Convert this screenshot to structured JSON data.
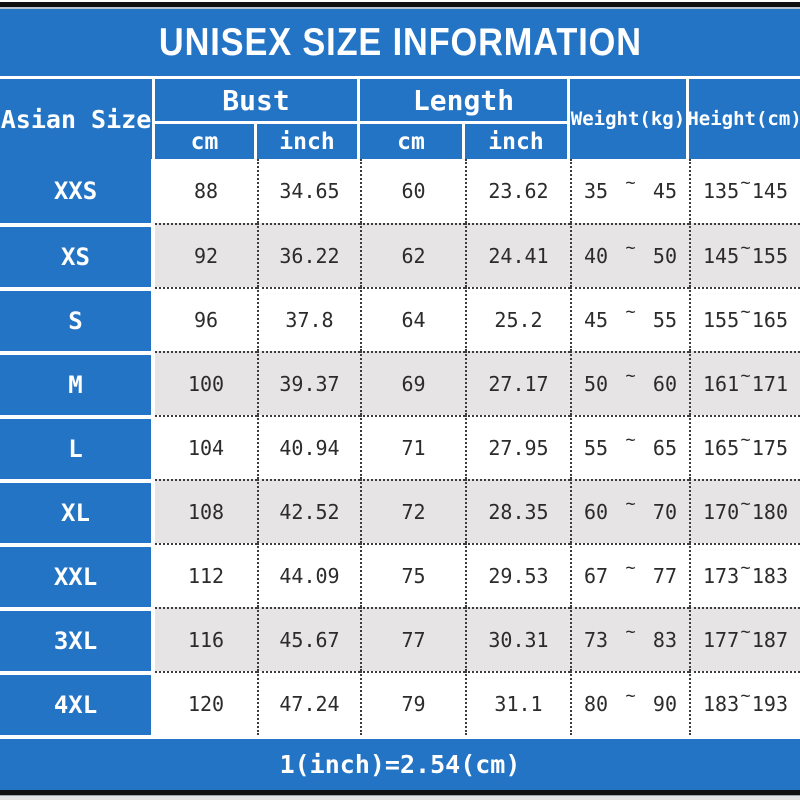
{
  "colors": {
    "accent_blue": "#2474C6",
    "row_alt_gray": "#E7E4E5",
    "cell_text": "#2B2B2B",
    "header_text": "#FFFFFF"
  },
  "chart_data": {
    "type": "table",
    "title": "UNISEX SIZE INFORMATION",
    "footnote": "1(inch)=2.54(cm)",
    "header": {
      "size_col": "Asian Size",
      "bust_group": "Bust",
      "length_group": "Length",
      "weight_col": "Weight(kg)",
      "height_col": "Height(cm)",
      "unit_cm": "cm",
      "unit_inch": "inch",
      "range_separator": "~"
    },
    "rows": [
      {
        "size": "XXS",
        "bust_cm": "88",
        "bust_inch": "34.65",
        "length_cm": "60",
        "length_inch": "23.62",
        "weight_min": "35",
        "weight_max": "45",
        "height_min": "135",
        "height_max": "145"
      },
      {
        "size": "XS",
        "bust_cm": "92",
        "bust_inch": "36.22",
        "length_cm": "62",
        "length_inch": "24.41",
        "weight_min": "40",
        "weight_max": "50",
        "height_min": "145",
        "height_max": "155"
      },
      {
        "size": "S",
        "bust_cm": "96",
        "bust_inch": "37.8",
        "length_cm": "64",
        "length_inch": "25.2",
        "weight_min": "45",
        "weight_max": "55",
        "height_min": "155",
        "height_max": "165"
      },
      {
        "size": "M",
        "bust_cm": "100",
        "bust_inch": "39.37",
        "length_cm": "69",
        "length_inch": "27.17",
        "weight_min": "50",
        "weight_max": "60",
        "height_min": "161",
        "height_max": "171"
      },
      {
        "size": "L",
        "bust_cm": "104",
        "bust_inch": "40.94",
        "length_cm": "71",
        "length_inch": "27.95",
        "weight_min": "55",
        "weight_max": "65",
        "height_min": "165",
        "height_max": "175"
      },
      {
        "size": "XL",
        "bust_cm": "108",
        "bust_inch": "42.52",
        "length_cm": "72",
        "length_inch": "28.35",
        "weight_min": "60",
        "weight_max": "70",
        "height_min": "170",
        "height_max": "180"
      },
      {
        "size": "XXL",
        "bust_cm": "112",
        "bust_inch": "44.09",
        "length_cm": "75",
        "length_inch": "29.53",
        "weight_min": "67",
        "weight_max": "77",
        "height_min": "173",
        "height_max": "183"
      },
      {
        "size": "3XL",
        "bust_cm": "116",
        "bust_inch": "45.67",
        "length_cm": "77",
        "length_inch": "30.31",
        "weight_min": "73",
        "weight_max": "83",
        "height_min": "177",
        "height_max": "187"
      },
      {
        "size": "4XL",
        "bust_cm": "120",
        "bust_inch": "47.24",
        "length_cm": "79",
        "length_inch": "31.1",
        "weight_min": "80",
        "weight_max": "90",
        "height_min": "183",
        "height_max": "193"
      }
    ]
  }
}
